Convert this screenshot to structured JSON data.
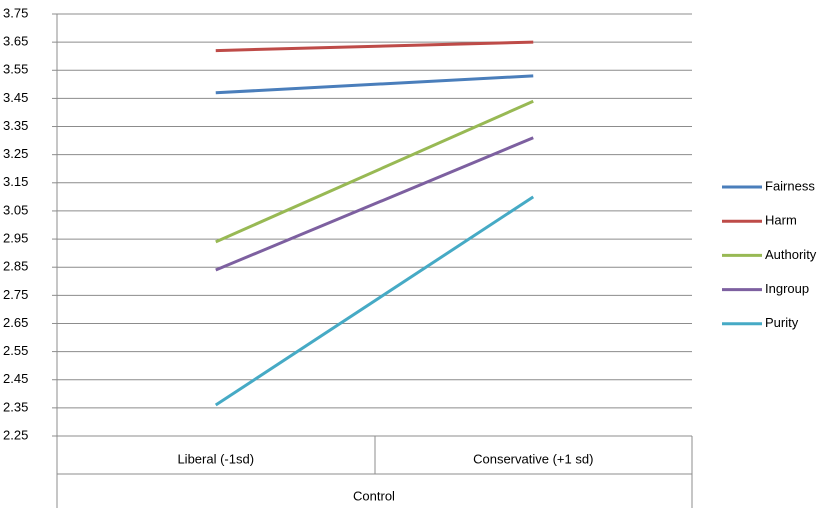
{
  "chart_data": {
    "type": "line",
    "categories": [
      "Liberal (-1sd)",
      "Conservative (+1 sd)"
    ],
    "group_label": "Control",
    "series": [
      {
        "name": "Fairness",
        "color": "#4a7ebb",
        "values": [
          3.47,
          3.53
        ]
      },
      {
        "name": "Harm",
        "color": "#be4b48",
        "values": [
          3.62,
          3.65
        ]
      },
      {
        "name": "Authority",
        "color": "#98b954",
        "values": [
          2.94,
          3.44
        ]
      },
      {
        "name": "Ingroup",
        "color": "#7d60a0",
        "values": [
          2.84,
          3.31
        ]
      },
      {
        "name": "Purity",
        "color": "#46aac5",
        "values": [
          2.36,
          3.1
        ]
      }
    ],
    "ylim": [
      2.25,
      3.75
    ],
    "yticks": [
      2.25,
      2.35,
      2.45,
      2.55,
      2.65,
      2.75,
      2.85,
      2.95,
      3.05,
      3.15,
      3.25,
      3.35,
      3.45,
      3.55,
      3.65,
      3.75
    ],
    "grid": true,
    "legend": "right"
  }
}
